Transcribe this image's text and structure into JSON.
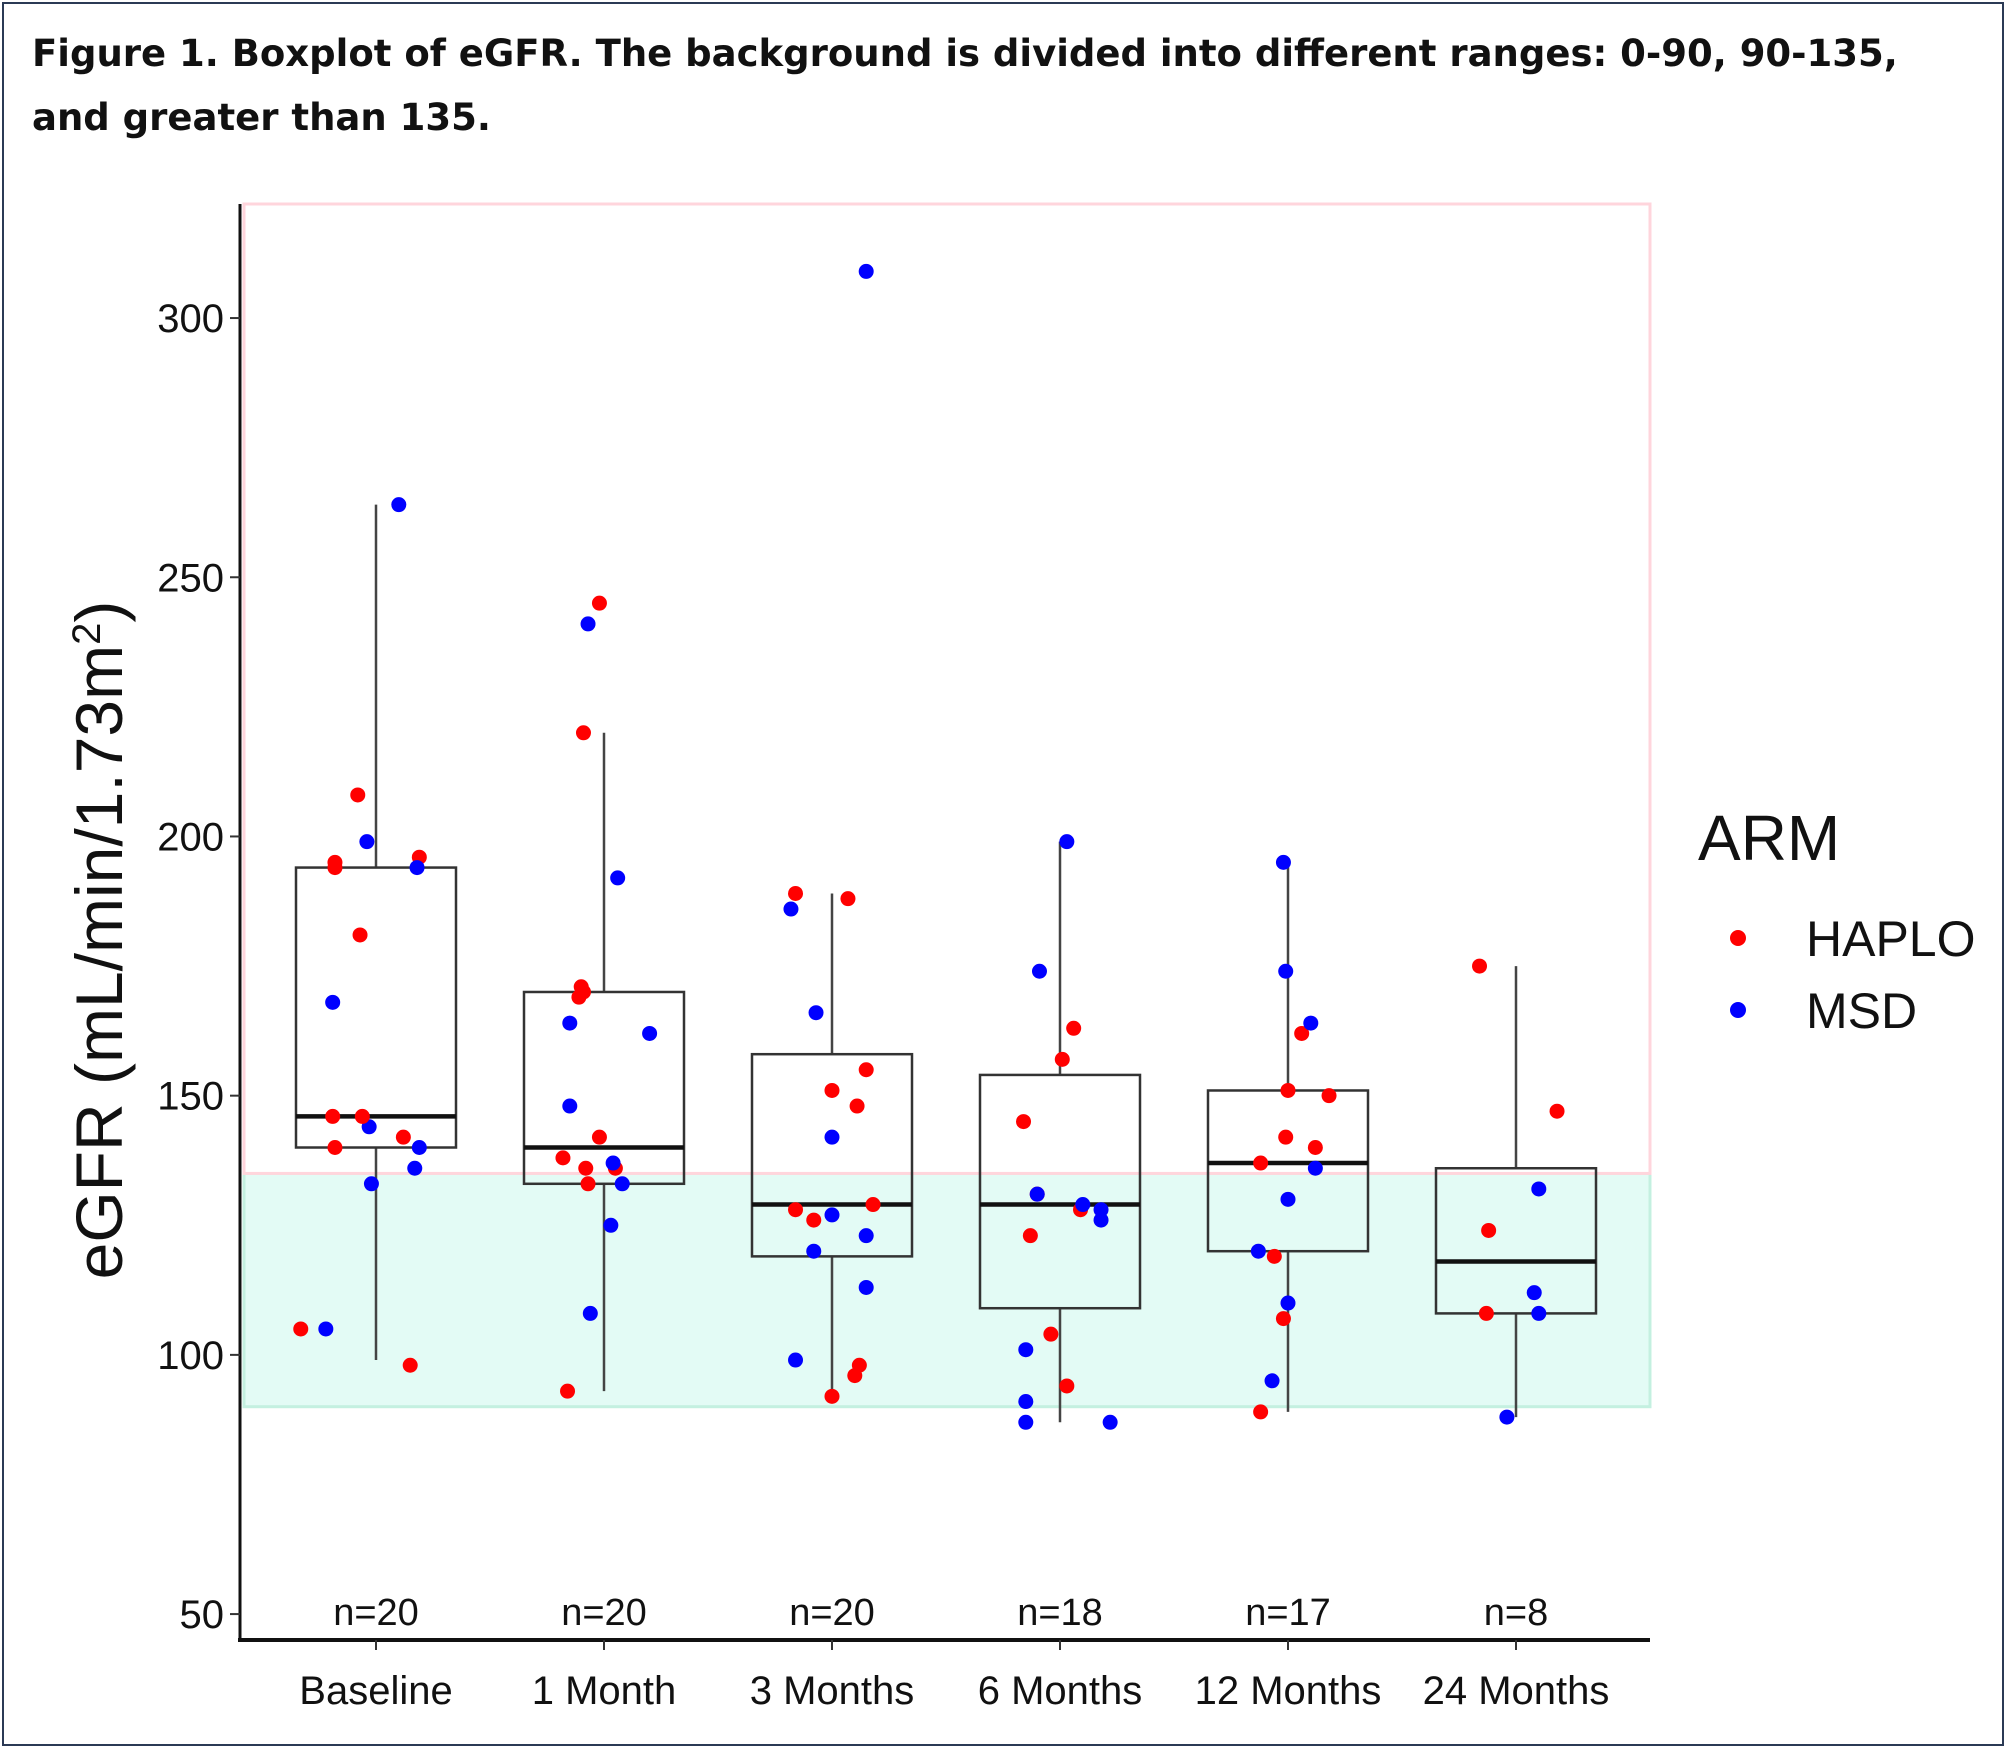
{
  "caption": "Figure 1. Boxplot of eGFR. The background is divided into different ranges: 0-90, 90-135, and greater than 135.",
  "chart_data": {
    "type": "boxplot",
    "ylabel": "eGFR (mL/min/1.73m",
    "ylabel_sup": "2",
    "ylabel_close": ")",
    "ylim": [
      45,
      322
    ],
    "yticks": [
      50,
      100,
      150,
      200,
      250,
      300
    ],
    "categories": [
      "Baseline",
      "1 Month",
      "3 Months",
      "6 Months",
      "12 Months",
      "24 Months"
    ],
    "n_labels": [
      "n=20",
      "n=20",
      "n=20",
      "n=18",
      "n=17",
      "n=8"
    ],
    "background_ranges": [
      {
        "from": 90,
        "to": 135,
        "color": "#e3fbf5",
        "border": "#c4f0e0"
      },
      {
        "from": 135,
        "to": 322,
        "color": "#ffffff",
        "border": "#ffd5dc"
      }
    ],
    "colors": {
      "HAPLO": "#ff0000",
      "MSD": "#0000ff"
    },
    "boxes": [
      {
        "q1": 140,
        "median": 146,
        "q3": 194,
        "whisker_low": 99,
        "whisker_high": 264
      },
      {
        "q1": 133,
        "median": 140,
        "q3": 170,
        "whisker_low": 93,
        "whisker_high": 220
      },
      {
        "q1": 119,
        "median": 129,
        "q3": 158,
        "whisker_low": 92,
        "whisker_high": 189
      },
      {
        "q1": 109,
        "median": 129,
        "q3": 154,
        "whisker_low": 87,
        "whisker_high": 199
      },
      {
        "q1": 120,
        "median": 137,
        "q3": 151,
        "whisker_low": 89,
        "whisker_high": 195
      },
      {
        "q1": 108,
        "median": 118,
        "q3": 136,
        "whisker_low": 88,
        "whisker_high": 175
      }
    ],
    "points": [
      {
        "cat": 0,
        "dx": -0.33,
        "y": 105,
        "arm": "HAPLO"
      },
      {
        "cat": 0,
        "dx": -0.22,
        "y": 105,
        "arm": "MSD"
      },
      {
        "cat": 0,
        "dx": 0.15,
        "y": 98,
        "arm": "HAPLO"
      },
      {
        "cat": 0,
        "dx": -0.18,
        "y": 140,
        "arm": "HAPLO"
      },
      {
        "cat": 0,
        "dx": -0.02,
        "y": 133,
        "arm": "MSD"
      },
      {
        "cat": 0,
        "dx": 0.17,
        "y": 136,
        "arm": "MSD"
      },
      {
        "cat": 0,
        "dx": 0.19,
        "y": 140,
        "arm": "MSD"
      },
      {
        "cat": 0,
        "dx": 0.12,
        "y": 142,
        "arm": "HAPLO"
      },
      {
        "cat": 0,
        "dx": -0.03,
        "y": 144,
        "arm": "MSD"
      },
      {
        "cat": 0,
        "dx": -0.06,
        "y": 146,
        "arm": "HAPLO"
      },
      {
        "cat": 0,
        "dx": -0.19,
        "y": 146,
        "arm": "HAPLO"
      },
      {
        "cat": 0,
        "dx": -0.19,
        "y": 168,
        "arm": "MSD"
      },
      {
        "cat": 0,
        "dx": -0.07,
        "y": 181,
        "arm": "HAPLO"
      },
      {
        "cat": 0,
        "dx": -0.18,
        "y": 195,
        "arm": "HAPLO"
      },
      {
        "cat": 0,
        "dx": -0.18,
        "y": 194,
        "arm": "HAPLO"
      },
      {
        "cat": 0,
        "dx": 0.19,
        "y": 196,
        "arm": "HAPLO"
      },
      {
        "cat": 0,
        "dx": 0.18,
        "y": 194,
        "arm": "MSD"
      },
      {
        "cat": 0,
        "dx": -0.04,
        "y": 199,
        "arm": "MSD"
      },
      {
        "cat": 0,
        "dx": -0.08,
        "y": 208,
        "arm": "HAPLO"
      },
      {
        "cat": 0,
        "dx": 0.1,
        "y": 264,
        "arm": "MSD"
      },
      {
        "cat": 1,
        "dx": -0.16,
        "y": 93,
        "arm": "HAPLO"
      },
      {
        "cat": 1,
        "dx": -0.06,
        "y": 108,
        "arm": "MSD"
      },
      {
        "cat": 1,
        "dx": 0.03,
        "y": 125,
        "arm": "MSD"
      },
      {
        "cat": 1,
        "dx": -0.07,
        "y": 133,
        "arm": "HAPLO"
      },
      {
        "cat": 1,
        "dx": 0.08,
        "y": 133,
        "arm": "MSD"
      },
      {
        "cat": 1,
        "dx": -0.08,
        "y": 136,
        "arm": "HAPLO"
      },
      {
        "cat": 1,
        "dx": 0.05,
        "y": 136,
        "arm": "HAPLO"
      },
      {
        "cat": 1,
        "dx": 0.04,
        "y": 137,
        "arm": "MSD"
      },
      {
        "cat": 1,
        "dx": -0.18,
        "y": 138,
        "arm": "HAPLO"
      },
      {
        "cat": 1,
        "dx": -0.02,
        "y": 142,
        "arm": "HAPLO"
      },
      {
        "cat": 1,
        "dx": -0.15,
        "y": 148,
        "arm": "MSD"
      },
      {
        "cat": 1,
        "dx": 0.2,
        "y": 162,
        "arm": "MSD"
      },
      {
        "cat": 1,
        "dx": -0.15,
        "y": 164,
        "arm": "MSD"
      },
      {
        "cat": 1,
        "dx": -0.11,
        "y": 169,
        "arm": "HAPLO"
      },
      {
        "cat": 1,
        "dx": -0.09,
        "y": 170,
        "arm": "HAPLO"
      },
      {
        "cat": 1,
        "dx": -0.1,
        "y": 171,
        "arm": "HAPLO"
      },
      {
        "cat": 1,
        "dx": 0.06,
        "y": 192,
        "arm": "MSD"
      },
      {
        "cat": 1,
        "dx": -0.09,
        "y": 220,
        "arm": "HAPLO"
      },
      {
        "cat": 1,
        "dx": -0.07,
        "y": 241,
        "arm": "MSD"
      },
      {
        "cat": 1,
        "dx": -0.02,
        "y": 245,
        "arm": "HAPLO"
      },
      {
        "cat": 2,
        "dx": 0.0,
        "y": 92,
        "arm": "HAPLO"
      },
      {
        "cat": 2,
        "dx": 0.1,
        "y": 96,
        "arm": "HAPLO"
      },
      {
        "cat": 2,
        "dx": 0.12,
        "y": 98,
        "arm": "HAPLO"
      },
      {
        "cat": 2,
        "dx": -0.16,
        "y": 99,
        "arm": "MSD"
      },
      {
        "cat": 2,
        "dx": 0.15,
        "y": 113,
        "arm": "MSD"
      },
      {
        "cat": 2,
        "dx": -0.08,
        "y": 120,
        "arm": "MSD"
      },
      {
        "cat": 2,
        "dx": 0.15,
        "y": 123,
        "arm": "MSD"
      },
      {
        "cat": 2,
        "dx": -0.08,
        "y": 126,
        "arm": "HAPLO"
      },
      {
        "cat": 2,
        "dx": -0.16,
        "y": 128,
        "arm": "HAPLO"
      },
      {
        "cat": 2,
        "dx": 0.0,
        "y": 127,
        "arm": "MSD"
      },
      {
        "cat": 2,
        "dx": 0.18,
        "y": 129,
        "arm": "HAPLO"
      },
      {
        "cat": 2,
        "dx": 0.0,
        "y": 142,
        "arm": "MSD"
      },
      {
        "cat": 2,
        "dx": 0.11,
        "y": 148,
        "arm": "HAPLO"
      },
      {
        "cat": 2,
        "dx": 0.0,
        "y": 151,
        "arm": "HAPLO"
      },
      {
        "cat": 2,
        "dx": 0.15,
        "y": 155,
        "arm": "HAPLO"
      },
      {
        "cat": 2,
        "dx": -0.07,
        "y": 166,
        "arm": "MSD"
      },
      {
        "cat": 2,
        "dx": -0.18,
        "y": 186,
        "arm": "MSD"
      },
      {
        "cat": 2,
        "dx": 0.07,
        "y": 188,
        "arm": "HAPLO"
      },
      {
        "cat": 2,
        "dx": -0.16,
        "y": 189,
        "arm": "HAPLO"
      },
      {
        "cat": 2,
        "dx": 0.15,
        "y": 309,
        "arm": "MSD"
      },
      {
        "cat": 3,
        "dx": -0.15,
        "y": 87,
        "arm": "MSD"
      },
      {
        "cat": 3,
        "dx": -0.15,
        "y": 91,
        "arm": "MSD"
      },
      {
        "cat": 3,
        "dx": 0.22,
        "y": 87,
        "arm": "MSD"
      },
      {
        "cat": 3,
        "dx": 0.03,
        "y": 94,
        "arm": "HAPLO"
      },
      {
        "cat": 3,
        "dx": -0.15,
        "y": 101,
        "arm": "MSD"
      },
      {
        "cat": 3,
        "dx": -0.04,
        "y": 104,
        "arm": "HAPLO"
      },
      {
        "cat": 3,
        "dx": -0.13,
        "y": 123,
        "arm": "HAPLO"
      },
      {
        "cat": 3,
        "dx": 0.18,
        "y": 126,
        "arm": "MSD"
      },
      {
        "cat": 3,
        "dx": 0.09,
        "y": 128,
        "arm": "HAPLO"
      },
      {
        "cat": 3,
        "dx": 0.1,
        "y": 129,
        "arm": "MSD"
      },
      {
        "cat": 3,
        "dx": 0.18,
        "y": 128,
        "arm": "MSD"
      },
      {
        "cat": 3,
        "dx": -0.1,
        "y": 131,
        "arm": "HAPLO"
      },
      {
        "cat": 3,
        "dx": -0.1,
        "y": 131,
        "arm": "MSD"
      },
      {
        "cat": 3,
        "dx": -0.16,
        "y": 145,
        "arm": "HAPLO"
      },
      {
        "cat": 3,
        "dx": 0.01,
        "y": 157,
        "arm": "HAPLO"
      },
      {
        "cat": 3,
        "dx": 0.06,
        "y": 163,
        "arm": "HAPLO"
      },
      {
        "cat": 3,
        "dx": -0.09,
        "y": 174,
        "arm": "MSD"
      },
      {
        "cat": 3,
        "dx": 0.03,
        "y": 199,
        "arm": "MSD"
      },
      {
        "cat": 4,
        "dx": -0.12,
        "y": 89,
        "arm": "HAPLO"
      },
      {
        "cat": 4,
        "dx": -0.07,
        "y": 95,
        "arm": "MSD"
      },
      {
        "cat": 4,
        "dx": -0.02,
        "y": 107,
        "arm": "HAPLO"
      },
      {
        "cat": 4,
        "dx": 0.0,
        "y": 110,
        "arm": "MSD"
      },
      {
        "cat": 4,
        "dx": -0.06,
        "y": 119,
        "arm": "HAPLO"
      },
      {
        "cat": 4,
        "dx": -0.13,
        "y": 120,
        "arm": "MSD"
      },
      {
        "cat": 4,
        "dx": 0.0,
        "y": 130,
        "arm": "MSD"
      },
      {
        "cat": 4,
        "dx": 0.12,
        "y": 136,
        "arm": "MSD"
      },
      {
        "cat": 4,
        "dx": -0.12,
        "y": 137,
        "arm": "HAPLO"
      },
      {
        "cat": 4,
        "dx": 0.12,
        "y": 140,
        "arm": "HAPLO"
      },
      {
        "cat": 4,
        "dx": -0.01,
        "y": 142,
        "arm": "HAPLO"
      },
      {
        "cat": 4,
        "dx": 0.0,
        "y": 151,
        "arm": "HAPLO"
      },
      {
        "cat": 4,
        "dx": 0.18,
        "y": 150,
        "arm": "HAPLO"
      },
      {
        "cat": 4,
        "dx": 0.06,
        "y": 162,
        "arm": "HAPLO"
      },
      {
        "cat": 4,
        "dx": 0.1,
        "y": 164,
        "arm": "MSD"
      },
      {
        "cat": 4,
        "dx": -0.01,
        "y": 174,
        "arm": "MSD"
      },
      {
        "cat": 4,
        "dx": -0.02,
        "y": 195,
        "arm": "MSD"
      },
      {
        "cat": 5,
        "dx": -0.16,
        "y": 175,
        "arm": "HAPLO"
      },
      {
        "cat": 5,
        "dx": -0.12,
        "y": 124,
        "arm": "HAPLO"
      },
      {
        "cat": 5,
        "dx": -0.13,
        "y": 108,
        "arm": "HAPLO"
      },
      {
        "cat": 5,
        "dx": 0.18,
        "y": 147,
        "arm": "HAPLO"
      },
      {
        "cat": 5,
        "dx": 0.1,
        "y": 132,
        "arm": "MSD"
      },
      {
        "cat": 5,
        "dx": 0.08,
        "y": 112,
        "arm": "MSD"
      },
      {
        "cat": 5,
        "dx": 0.1,
        "y": 108,
        "arm": "MSD"
      },
      {
        "cat": 5,
        "dx": -0.04,
        "y": 88,
        "arm": "MSD"
      }
    ],
    "legend": {
      "title": "ARM",
      "position": "right",
      "items": [
        {
          "label": "HAPLO",
          "arm": "HAPLO"
        },
        {
          "label": "MSD",
          "arm": "MSD"
        }
      ]
    }
  }
}
